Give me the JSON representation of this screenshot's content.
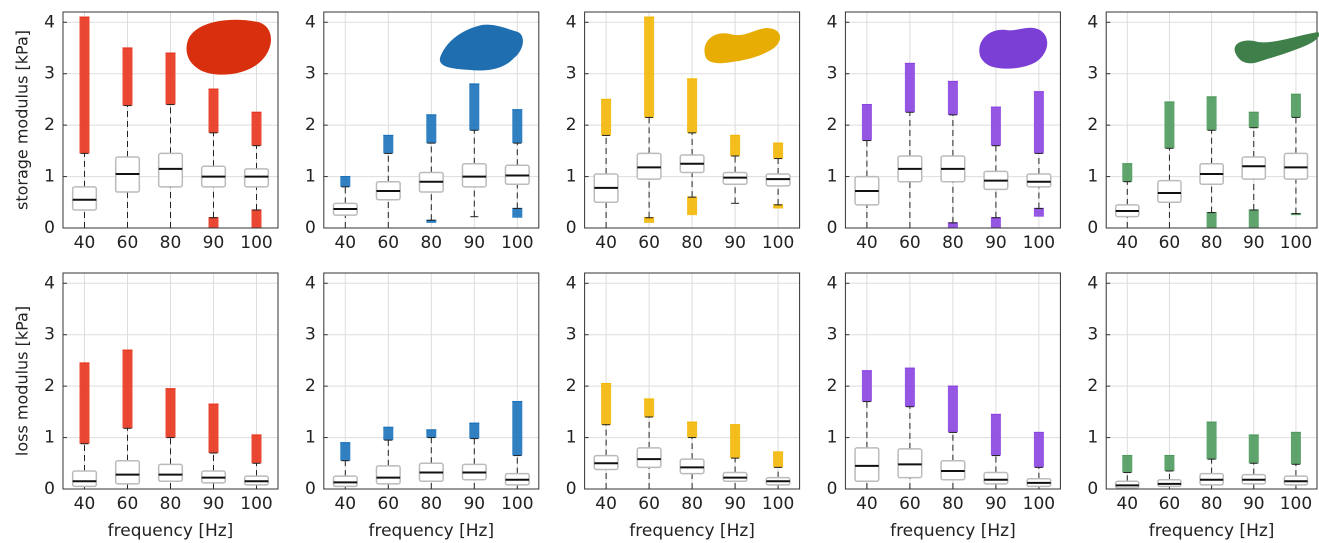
{
  "chart_data": [
    {
      "type": "box",
      "color": "#e8341c",
      "ylabel": "storage modulus [kPa]",
      "categories": [
        "40",
        "60",
        "80",
        "90",
        "100"
      ],
      "ylim": [
        0,
        4.2
      ],
      "yticks": [
        0,
        1,
        2,
        3,
        4
      ],
      "grid": true,
      "boxes": [
        {
          "whislo": 0,
          "q1": 0.35,
          "med": 0.55,
          "q3": 0.8,
          "whishi": 1.45,
          "fliers": [
            [
              1.45,
              4.1
            ]
          ]
        },
        {
          "whislo": 0,
          "q1": 0.7,
          "med": 1.05,
          "q3": 1.38,
          "whishi": 2.38,
          "fliers": [
            [
              2.38,
              3.5
            ]
          ]
        },
        {
          "whislo": 0,
          "q1": 0.8,
          "med": 1.15,
          "q3": 1.45,
          "whishi": 2.4,
          "fliers": [
            [
              2.4,
              3.4
            ]
          ]
        },
        {
          "whislo": 0.2,
          "q1": 0.8,
          "med": 1.0,
          "q3": 1.2,
          "whishi": 1.85,
          "fliers": [
            [
              1.85,
              2.7
            ],
            [
              0,
              0.2
            ]
          ]
        },
        {
          "whislo": 0.35,
          "q1": 0.8,
          "med": 1.0,
          "q3": 1.15,
          "whishi": 1.6,
          "fliers": [
            [
              1.6,
              2.25
            ],
            [
              0,
              0.35
            ]
          ]
        }
      ]
    },
    {
      "type": "box",
      "color": "#1a72bb",
      "categories": [
        "40",
        "60",
        "80",
        "90",
        "100"
      ],
      "ylim": [
        0,
        4.2
      ],
      "yticks": [
        0,
        1,
        2,
        3,
        4
      ],
      "grid": true,
      "boxes": [
        {
          "whislo": 0,
          "q1": 0.25,
          "med": 0.37,
          "q3": 0.48,
          "whishi": 0.8,
          "fliers": [
            [
              0.8,
              1.0
            ]
          ]
        },
        {
          "whislo": 0,
          "q1": 0.55,
          "med": 0.72,
          "q3": 0.9,
          "whishi": 1.45,
          "fliers": [
            [
              1.45,
              1.8
            ]
          ]
        },
        {
          "whislo": 0.15,
          "q1": 0.7,
          "med": 0.9,
          "q3": 1.08,
          "whishi": 1.65,
          "fliers": [
            [
              1.65,
              2.2
            ],
            [
              0.1,
              0.15
            ]
          ]
        },
        {
          "whislo": 0.22,
          "q1": 0.8,
          "med": 1.0,
          "q3": 1.25,
          "whishi": 1.9,
          "fliers": [
            [
              1.9,
              2.8
            ]
          ]
        },
        {
          "whislo": 0.38,
          "q1": 0.85,
          "med": 1.02,
          "q3": 1.22,
          "whishi": 1.65,
          "fliers": [
            [
              1.65,
              2.3
            ],
            [
              0.2,
              0.38
            ]
          ]
        }
      ]
    },
    {
      "type": "box",
      "color": "#f2b705",
      "categories": [
        "40",
        "60",
        "80",
        "90",
        "100"
      ],
      "ylim": [
        0,
        4.2
      ],
      "yticks": [
        0,
        1,
        2,
        3,
        4
      ],
      "grid": true,
      "boxes": [
        {
          "whislo": 0,
          "q1": 0.5,
          "med": 0.78,
          "q3": 1.05,
          "whishi": 1.8,
          "fliers": [
            [
              1.8,
              2.5
            ]
          ]
        },
        {
          "whislo": 0.2,
          "q1": 0.95,
          "med": 1.18,
          "q3": 1.45,
          "whishi": 2.15,
          "fliers": [
            [
              2.15,
              4.1
            ],
            [
              0.1,
              0.2
            ]
          ]
        },
        {
          "whislo": 0.6,
          "q1": 1.08,
          "med": 1.25,
          "q3": 1.42,
          "whishi": 1.85,
          "fliers": [
            [
              1.85,
              2.9
            ],
            [
              0.25,
              0.6
            ]
          ]
        },
        {
          "whislo": 0.48,
          "q1": 0.85,
          "med": 0.98,
          "q3": 1.08,
          "whishi": 1.4,
          "fliers": [
            [
              1.4,
              1.8
            ]
          ]
        },
        {
          "whislo": 0.45,
          "q1": 0.82,
          "med": 0.95,
          "q3": 1.05,
          "whishi": 1.35,
          "fliers": [
            [
              1.35,
              1.65
            ],
            [
              0.38,
              0.45
            ]
          ]
        }
      ]
    },
    {
      "type": "box",
      "color": "#8a45e0",
      "categories": [
        "40",
        "60",
        "80",
        "90",
        "100"
      ],
      "ylim": [
        0,
        4.2
      ],
      "yticks": [
        0,
        1,
        2,
        3,
        4
      ],
      "grid": true,
      "boxes": [
        {
          "whislo": 0,
          "q1": 0.45,
          "med": 0.72,
          "q3": 1.0,
          "whishi": 1.7,
          "fliers": [
            [
              1.7,
              2.4
            ]
          ]
        },
        {
          "whislo": 0,
          "q1": 0.9,
          "med": 1.15,
          "q3": 1.4,
          "whishi": 2.25,
          "fliers": [
            [
              2.25,
              3.2
            ]
          ]
        },
        {
          "whislo": 0.1,
          "q1": 0.9,
          "med": 1.15,
          "q3": 1.4,
          "whishi": 2.2,
          "fliers": [
            [
              2.2,
              2.85
            ],
            [
              0,
              0.1
            ]
          ]
        },
        {
          "whislo": 0.2,
          "q1": 0.75,
          "med": 0.92,
          "q3": 1.1,
          "whishi": 1.6,
          "fliers": [
            [
              1.6,
              2.35
            ],
            [
              0,
              0.2
            ]
          ]
        },
        {
          "whislo": 0.38,
          "q1": 0.8,
          "med": 0.9,
          "q3": 1.05,
          "whishi": 1.45,
          "fliers": [
            [
              1.45,
              2.65
            ],
            [
              0.22,
              0.38
            ]
          ]
        }
      ]
    },
    {
      "type": "box",
      "color": "#4e9a5c",
      "categories": [
        "40",
        "60",
        "80",
        "90",
        "100"
      ],
      "ylim": [
        0,
        4.2
      ],
      "yticks": [
        0,
        1,
        2,
        3,
        4
      ],
      "grid": true,
      "boxes": [
        {
          "whislo": 0,
          "q1": 0.22,
          "med": 0.33,
          "q3": 0.45,
          "whishi": 0.9,
          "fliers": [
            [
              0.9,
              1.25
            ]
          ]
        },
        {
          "whislo": 0,
          "q1": 0.5,
          "med": 0.68,
          "q3": 0.92,
          "whishi": 1.55,
          "fliers": [
            [
              1.55,
              2.45
            ]
          ]
        },
        {
          "whislo": 0.3,
          "q1": 0.85,
          "med": 1.05,
          "q3": 1.25,
          "whishi": 1.9,
          "fliers": [
            [
              1.9,
              2.55
            ],
            [
              0,
              0.3
            ]
          ]
        },
        {
          "whislo": 0.35,
          "q1": 0.95,
          "med": 1.2,
          "q3": 1.38,
          "whishi": 1.95,
          "fliers": [
            [
              1.95,
              2.25
            ],
            [
              0,
              0.35
            ]
          ]
        },
        {
          "whislo": 0.28,
          "q1": 0.95,
          "med": 1.18,
          "q3": 1.45,
          "whishi": 2.15,
          "fliers": [
            [
              2.15,
              2.6
            ],
            [
              0.25,
              0.28
            ]
          ]
        }
      ]
    },
    {
      "type": "box",
      "color": "#e8341c",
      "ylabel": "loss modulus [kPa]",
      "xlabel": "frequency [Hz]",
      "categories": [
        "40",
        "60",
        "80",
        "90",
        "100"
      ],
      "ylim": [
        0,
        4.2
      ],
      "yticks": [
        0,
        1,
        2,
        3,
        4
      ],
      "grid": true,
      "boxes": [
        {
          "whislo": 0,
          "q1": 0.05,
          "med": 0.15,
          "q3": 0.35,
          "whishi": 0.88,
          "fliers": [
            [
              0.88,
              2.45
            ]
          ]
        },
        {
          "whislo": 0,
          "q1": 0.1,
          "med": 0.28,
          "q3": 0.55,
          "whishi": 1.18,
          "fliers": [
            [
              1.18,
              2.7
            ]
          ]
        },
        {
          "whislo": 0,
          "q1": 0.15,
          "med": 0.28,
          "q3": 0.48,
          "whishi": 1.0,
          "fliers": [
            [
              1.0,
              1.95
            ]
          ]
        },
        {
          "whislo": 0,
          "q1": 0.12,
          "med": 0.22,
          "q3": 0.35,
          "whishi": 0.7,
          "fliers": [
            [
              0.7,
              1.65
            ]
          ]
        },
        {
          "whislo": 0,
          "q1": 0.08,
          "med": 0.15,
          "q3": 0.25,
          "whishi": 0.5,
          "fliers": [
            [
              0.5,
              1.05
            ]
          ]
        }
      ]
    },
    {
      "type": "box",
      "color": "#1a72bb",
      "xlabel": "frequency [Hz]",
      "categories": [
        "40",
        "60",
        "80",
        "90",
        "100"
      ],
      "ylim": [
        0,
        4.2
      ],
      "yticks": [
        0,
        1,
        2,
        3,
        4
      ],
      "grid": true,
      "boxes": [
        {
          "whislo": 0,
          "q1": 0.05,
          "med": 0.13,
          "q3": 0.25,
          "whishi": 0.55,
          "fliers": [
            [
              0.55,
              0.9
            ]
          ]
        },
        {
          "whislo": 0,
          "q1": 0.1,
          "med": 0.22,
          "q3": 0.45,
          "whishi": 0.95,
          "fliers": [
            [
              0.95,
              1.2
            ]
          ]
        },
        {
          "whislo": 0,
          "q1": 0.15,
          "med": 0.32,
          "q3": 0.5,
          "whishi": 1.0,
          "fliers": [
            [
              1.0,
              1.15
            ]
          ]
        },
        {
          "whislo": 0,
          "q1": 0.18,
          "med": 0.32,
          "q3": 0.48,
          "whishi": 0.98,
          "fliers": [
            [
              0.98,
              1.28
            ]
          ]
        },
        {
          "whislo": 0,
          "q1": 0.08,
          "med": 0.18,
          "q3": 0.3,
          "whishi": 0.65,
          "fliers": [
            [
              0.65,
              1.7
            ]
          ]
        }
      ]
    },
    {
      "type": "box",
      "color": "#f2b705",
      "xlabel": "frequency [Hz]",
      "categories": [
        "40",
        "60",
        "80",
        "90",
        "100"
      ],
      "ylim": [
        0,
        4.2
      ],
      "yticks": [
        0,
        1,
        2,
        3,
        4
      ],
      "grid": true,
      "boxes": [
        {
          "whislo": 0,
          "q1": 0.38,
          "med": 0.5,
          "q3": 0.65,
          "whishi": 1.25,
          "fliers": [
            [
              1.25,
              2.05
            ]
          ]
        },
        {
          "whislo": 0,
          "q1": 0.42,
          "med": 0.58,
          "q3": 0.8,
          "whishi": 1.4,
          "fliers": [
            [
              1.4,
              1.75
            ]
          ]
        },
        {
          "whislo": 0,
          "q1": 0.3,
          "med": 0.42,
          "q3": 0.58,
          "whishi": 1.0,
          "fliers": [
            [
              1.0,
              1.3
            ]
          ]
        },
        {
          "whislo": 0,
          "q1": 0.15,
          "med": 0.22,
          "q3": 0.32,
          "whishi": 0.6,
          "fliers": [
            [
              0.6,
              1.25
            ]
          ]
        },
        {
          "whislo": 0,
          "q1": 0.08,
          "med": 0.15,
          "q3": 0.22,
          "whishi": 0.42,
          "fliers": [
            [
              0.42,
              0.72
            ]
          ]
        }
      ]
    },
    {
      "type": "box",
      "color": "#8a45e0",
      "xlabel": "frequency [Hz]",
      "categories": [
        "40",
        "60",
        "80",
        "90",
        "100"
      ],
      "ylim": [
        0,
        4.2
      ],
      "yticks": [
        0,
        1,
        2,
        3,
        4
      ],
      "grid": true,
      "boxes": [
        {
          "whislo": 0,
          "q1": 0.15,
          "med": 0.45,
          "q3": 0.8,
          "whishi": 1.7,
          "fliers": [
            [
              1.7,
              2.3
            ]
          ]
        },
        {
          "whislo": 0,
          "q1": 0.22,
          "med": 0.48,
          "q3": 0.78,
          "whishi": 1.6,
          "fliers": [
            [
              1.6,
              2.35
            ]
          ]
        },
        {
          "whislo": 0,
          "q1": 0.18,
          "med": 0.35,
          "q3": 0.55,
          "whishi": 1.1,
          "fliers": [
            [
              1.1,
              2.0
            ]
          ]
        },
        {
          "whislo": 0,
          "q1": 0.1,
          "med": 0.18,
          "q3": 0.32,
          "whishi": 0.65,
          "fliers": [
            [
              0.65,
              1.45
            ]
          ]
        },
        {
          "whislo": 0,
          "q1": 0.05,
          "med": 0.12,
          "q3": 0.2,
          "whishi": 0.42,
          "fliers": [
            [
              0.42,
              1.1
            ]
          ]
        }
      ]
    },
    {
      "type": "box",
      "color": "#4e9a5c",
      "xlabel": "frequency [Hz]",
      "categories": [
        "40",
        "60",
        "80",
        "90",
        "100"
      ],
      "ylim": [
        0,
        4.2
      ],
      "yticks": [
        0,
        1,
        2,
        3,
        4
      ],
      "grid": true,
      "boxes": [
        {
          "whislo": 0,
          "q1": 0.02,
          "med": 0.07,
          "q3": 0.15,
          "whishi": 0.32,
          "fliers": [
            [
              0.32,
              0.65
            ]
          ]
        },
        {
          "whislo": 0,
          "q1": 0.05,
          "med": 0.1,
          "q3": 0.18,
          "whishi": 0.35,
          "fliers": [
            [
              0.35,
              0.65
            ]
          ]
        },
        {
          "whislo": 0,
          "q1": 0.08,
          "med": 0.18,
          "q3": 0.3,
          "whishi": 0.58,
          "fliers": [
            [
              0.58,
              1.3
            ]
          ]
        },
        {
          "whislo": 0,
          "q1": 0.1,
          "med": 0.18,
          "q3": 0.28,
          "whishi": 0.5,
          "fliers": [
            [
              0.5,
              1.05
            ]
          ]
        },
        {
          "whislo": 0,
          "q1": 0.08,
          "med": 0.15,
          "q3": 0.25,
          "whishi": 0.48,
          "fliers": [
            [
              0.48,
              1.1
            ]
          ]
        }
      ]
    }
  ]
}
